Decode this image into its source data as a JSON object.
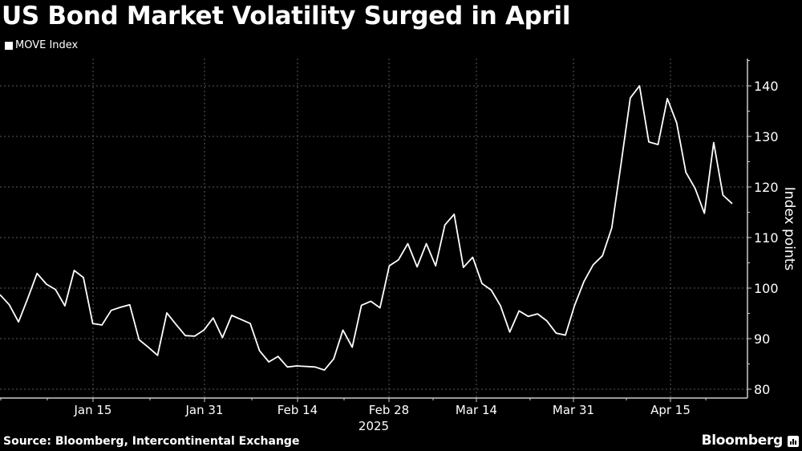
{
  "title": "US Bond Market Volatility Surged in April",
  "legend": {
    "label": "MOVE Index",
    "color": "#ffffff"
  },
  "y_axis_label": "Index points",
  "source": "Source: Bloomberg, Intercontinental Exchange",
  "brand": "Bloomberg",
  "colors": {
    "background": "#000000",
    "line": "#ffffff",
    "grid": "#5a5a5a",
    "axis": "#cccccc"
  },
  "chart_data": {
    "type": "line",
    "title": "US Bond Market Volatility Surged in April",
    "xlabel": "",
    "ylabel": "Index points",
    "ylim": [
      80,
      145
    ],
    "yticks": [
      80,
      90,
      100,
      110,
      120,
      130,
      140
    ],
    "xtick_labels": [
      "Jan 15",
      "Jan 31",
      "Feb 14",
      "Feb 28",
      "Mar 14",
      "Mar 31",
      "Apr 15"
    ],
    "xtick_year": "2025",
    "grid": true,
    "legend_position": "top-left",
    "series": [
      {
        "name": "MOVE Index",
        "x_start": "2024-12-31",
        "frequency": "trading days",
        "values": [
          98.7,
          96.7,
          93.3,
          98.0,
          102.9,
          100.8,
          99.7,
          96.5,
          103.5,
          102.1,
          93.0,
          92.7,
          95.6,
          96.2,
          96.7,
          89.8,
          88.3,
          86.7,
          95.1,
          92.8,
          90.6,
          90.5,
          91.7,
          94.1,
          90.2,
          94.6,
          93.8,
          93.0,
          87.6,
          85.4,
          86.5,
          84.4,
          84.6,
          84.5,
          84.4,
          83.8,
          86.0,
          91.7,
          88.3,
          96.6,
          97.4,
          96.1,
          104.4,
          105.6,
          108.8,
          104.2,
          108.8,
          104.4,
          112.5,
          114.6,
          104.1,
          106.1,
          100.9,
          99.6,
          96.5,
          91.3,
          95.5,
          94.4,
          94.9,
          93.5,
          91.1,
          90.7,
          96.6,
          101.3,
          104.6,
          106.4,
          111.9,
          124.5,
          137.6,
          140.0,
          128.9,
          128.4,
          137.5,
          132.7,
          122.9,
          119.7,
          114.8,
          128.8,
          118.4,
          116.7
        ]
      }
    ]
  }
}
